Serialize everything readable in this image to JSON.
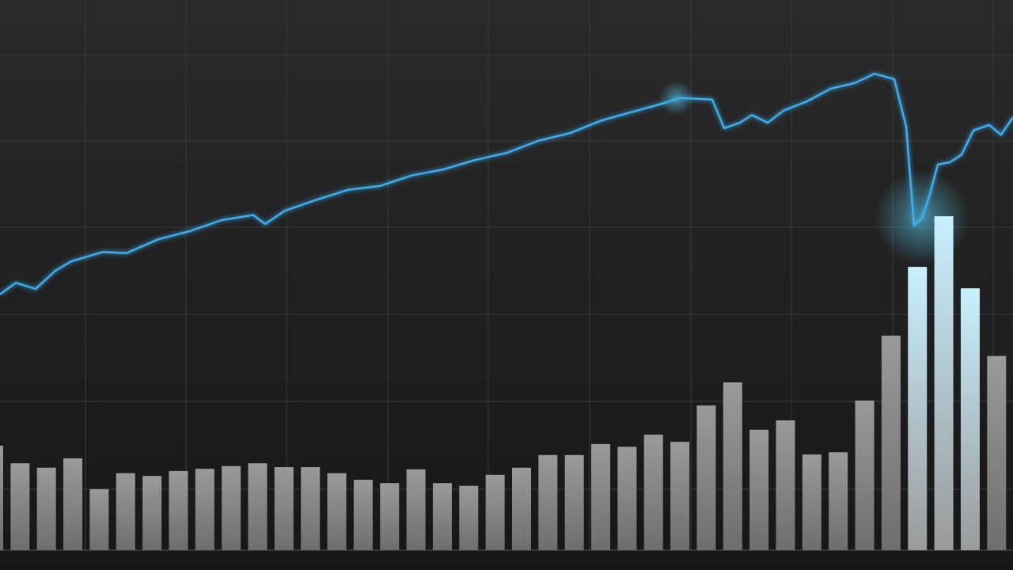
{
  "chart_data": [
    {
      "type": "line",
      "color": "#3aaef0",
      "x": [
        0,
        1,
        2.25,
        3.5,
        4.5,
        6.5,
        8,
        10,
        12,
        14,
        16,
        16.75,
        18,
        20,
        22,
        24,
        26,
        28,
        30,
        32,
        34,
        36,
        38,
        40,
        42,
        43,
        45,
        45.75,
        46.75,
        47.5,
        48.5,
        49.5,
        51,
        52.5,
        54,
        55.25,
        56.5,
        57.25,
        57.75,
        58.25,
        58.75,
        59.25,
        60,
        60.75,
        61.5,
        62.5,
        63.25,
        64
      ],
      "values": [
        46.5,
        48.6,
        47.5,
        50.8,
        52.5,
        54.2,
        54.0,
        56.5,
        58.0,
        60.0,
        60.9,
        59.3,
        61.7,
        63.7,
        65.5,
        66.2,
        68.1,
        69.2,
        70.9,
        72.2,
        74.4,
        75.8,
        78.1,
        79.7,
        81.3,
        82.2,
        81.9,
        76.7,
        77.7,
        79.1,
        77.7,
        79.9,
        81.6,
        83.9,
        84.9,
        86.6,
        85.6,
        77.0,
        59.0,
        60.4,
        64.7,
        70.1,
        70.5,
        71.9,
        76.3,
        77.3,
        75.5,
        78.7
      ],
      "xlim": [
        0,
        64
      ],
      "ylim": [
        0,
        100
      ]
    },
    {
      "type": "bar",
      "color": "#8c8c8c",
      "categories": [
        null,
        null,
        null,
        null,
        null,
        null,
        null,
        null,
        null,
        null,
        null,
        null,
        null,
        null,
        null,
        null,
        null,
        null,
        null,
        null,
        null,
        null,
        null,
        null,
        null,
        null,
        null,
        null,
        null,
        null,
        null,
        null,
        null,
        null,
        null,
        null,
        null,
        null,
        null
      ],
      "values": [
        19.0,
        15.8,
        15.0,
        16.7,
        11.1,
        14.0,
        13.5,
        14.4,
        14.8,
        15.3,
        15.8,
        15.1,
        15.1,
        14.0,
        12.8,
        12.2,
        14.7,
        12.2,
        11.7,
        13.7,
        15.0,
        17.3,
        17.3,
        19.3,
        18.8,
        21.0,
        19.7,
        26.3,
        30.5,
        21.9,
        23.6,
        17.4,
        17.8,
        27.2,
        39.0,
        51.5,
        60.7,
        47.6,
        35.3
      ],
      "ylim": [
        0,
        100
      ]
    }
  ]
}
